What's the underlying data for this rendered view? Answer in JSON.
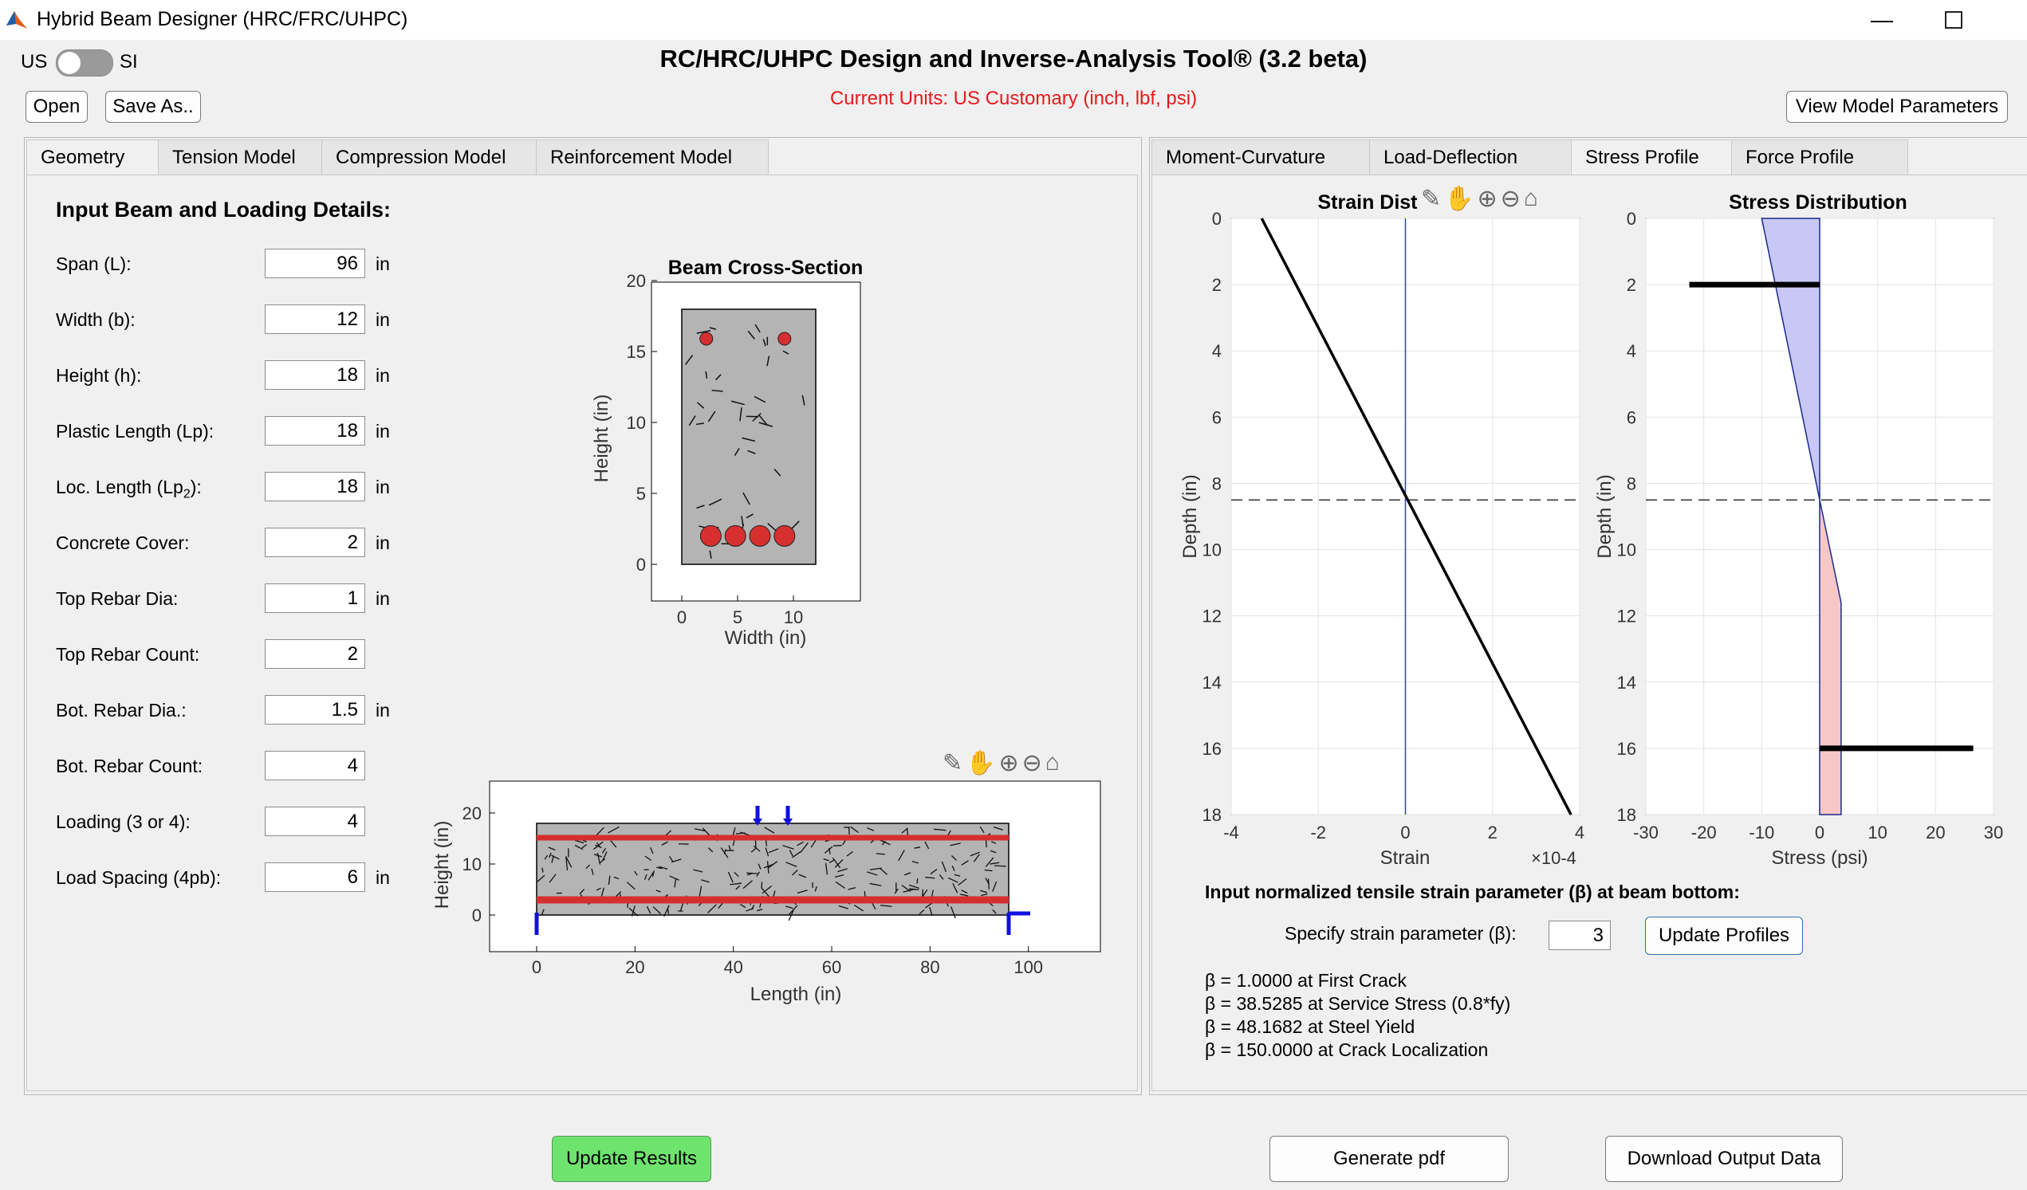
{
  "window": {
    "title": "Hybrid Beam Designer (HRC/FRC/UHPC)"
  },
  "units_toggle": {
    "left": "US",
    "right": "SI"
  },
  "header": {
    "title": "RC/HRC/UHPC Design and Inverse-Analysis Tool® (3.2 beta)",
    "units": "Current Units: US Customary (inch, lbf, psi)",
    "open": "Open",
    "save_as": "Save As..",
    "view_params": "View Model Parameters"
  },
  "left_tabs": [
    "Geometry",
    "Tension Model",
    "Compression Model",
    "Reinforcement Model"
  ],
  "right_tabs": [
    "Moment-Curvature",
    "Load-Deflection",
    "Stress Profile",
    "Force Profile"
  ],
  "geometry": {
    "heading": "Input Beam and Loading Details:",
    "fields": [
      {
        "label": "Span (L):",
        "value": "96",
        "unit": "in"
      },
      {
        "label": "Width (b):",
        "value": "12",
        "unit": "in"
      },
      {
        "label": "Height (h):",
        "value": "18",
        "unit": "in"
      },
      {
        "label": "Plastic Length (Lp):",
        "value": "18",
        "unit": "in"
      },
      {
        "label": "Loc. Length (Lp2):",
        "value": "18",
        "unit": "in"
      },
      {
        "label": "Concrete Cover:",
        "value": "2",
        "unit": "in"
      },
      {
        "label": "Top Rebar Dia:",
        "value": "1",
        "unit": "in"
      },
      {
        "label": "Top Rebar Count:",
        "value": "2",
        "unit": ""
      },
      {
        "label": "Bot. Rebar Dia.:",
        "value": "1.5",
        "unit": "in"
      },
      {
        "label": "Bot. Rebar Count:",
        "value": "4",
        "unit": ""
      },
      {
        "label": "Loading (3 or 4):",
        "value": "4",
        "unit": ""
      },
      {
        "label": "Load Spacing (4pb):",
        "value": "6",
        "unit": "in"
      }
    ],
    "loc_length_prefix": "Loc. Length (Lp",
    "loc_length_sub": "2",
    "loc_length_suffix": "):"
  },
  "cross_section": {
    "title": "Beam Cross-Section",
    "xlabel": "Width (in)",
    "ylabel": "Height (in)",
    "xticks": [
      "0",
      "5",
      "10"
    ],
    "yticks": [
      "0",
      "5",
      "10",
      "15",
      "20"
    ],
    "colors": {
      "concrete": "#b4b4b4",
      "rebar": "#d62f2f"
    }
  },
  "elevation": {
    "xlabel": "Length (in)",
    "ylabel": "Height (in)",
    "xticks": [
      "0",
      "20",
      "40",
      "60",
      "80",
      "100"
    ],
    "yticks": [
      "0",
      "10",
      "20"
    ]
  },
  "chart_data": [
    {
      "type": "line",
      "title": "Strain Dist",
      "xlabel": "Strain",
      "ylabel": "Depth (in)",
      "x_multiplier": "×10-4",
      "xlim": [
        -4,
        4
      ],
      "ylim": [
        18,
        0
      ],
      "xticks": [
        "-4",
        "-2",
        "0",
        "2",
        "4"
      ],
      "yticks": [
        "0",
        "2",
        "4",
        "6",
        "8",
        "10",
        "12",
        "14",
        "16",
        "18"
      ],
      "series": [
        {
          "x": [
            -3.3,
            3.8
          ],
          "y": [
            0,
            18
          ]
        },
        {
          "x": [
            0,
            0
          ],
          "y": [
            0,
            18
          ]
        },
        {
          "x": [
            -4,
            4
          ],
          "y": [
            8.5,
            8.5
          ]
        }
      ]
    },
    {
      "type": "area",
      "title": "Stress Distribution",
      "xlabel": "Stress (psi)",
      "ylabel": "Depth (in)",
      "xlim": [
        -30,
        30
      ],
      "ylim": [
        18,
        0
      ],
      "xticks": [
        "-30",
        "-20",
        "-10",
        "0",
        "10",
        "20",
        "30"
      ],
      "yticks": [
        "0",
        "2",
        "4",
        "6",
        "8",
        "10",
        "12",
        "14",
        "16",
        "18"
      ],
      "compression_profile": {
        "x": [
          -10,
          0,
          0
        ],
        "y": [
          0,
          8.5,
          0
        ]
      },
      "tension_profile": {
        "x": [
          0,
          3.7,
          3.7,
          0
        ],
        "y": [
          8.5,
          11.6,
          18,
          18
        ]
      },
      "rebar_forces": [
        {
          "depth": 2,
          "value": -22.5
        },
        {
          "depth": 16,
          "value": 26.5
        }
      ],
      "neutral_axis": 8.5,
      "colors": {
        "compression": "#c7c8f5",
        "tension": "#f7c7c7"
      }
    }
  ],
  "stress_profile": {
    "param_heading": "Input normalized tensile strain parameter (β) at beam bottom:",
    "specify_label": "Specify strain parameter (β):",
    "beta_value": "3",
    "update_profiles": "Update Profiles",
    "beta_lines": [
      "β = 1.0000 at First Crack",
      "β = 38.5285 at Service Stress (0.8*fy)",
      "β = 48.1682 at Steel Yield",
      "β = 150.0000 at Crack Localization"
    ]
  },
  "footer": {
    "update_results": "Update Results",
    "generate_pdf": "Generate pdf",
    "download": "Download Output Data"
  }
}
